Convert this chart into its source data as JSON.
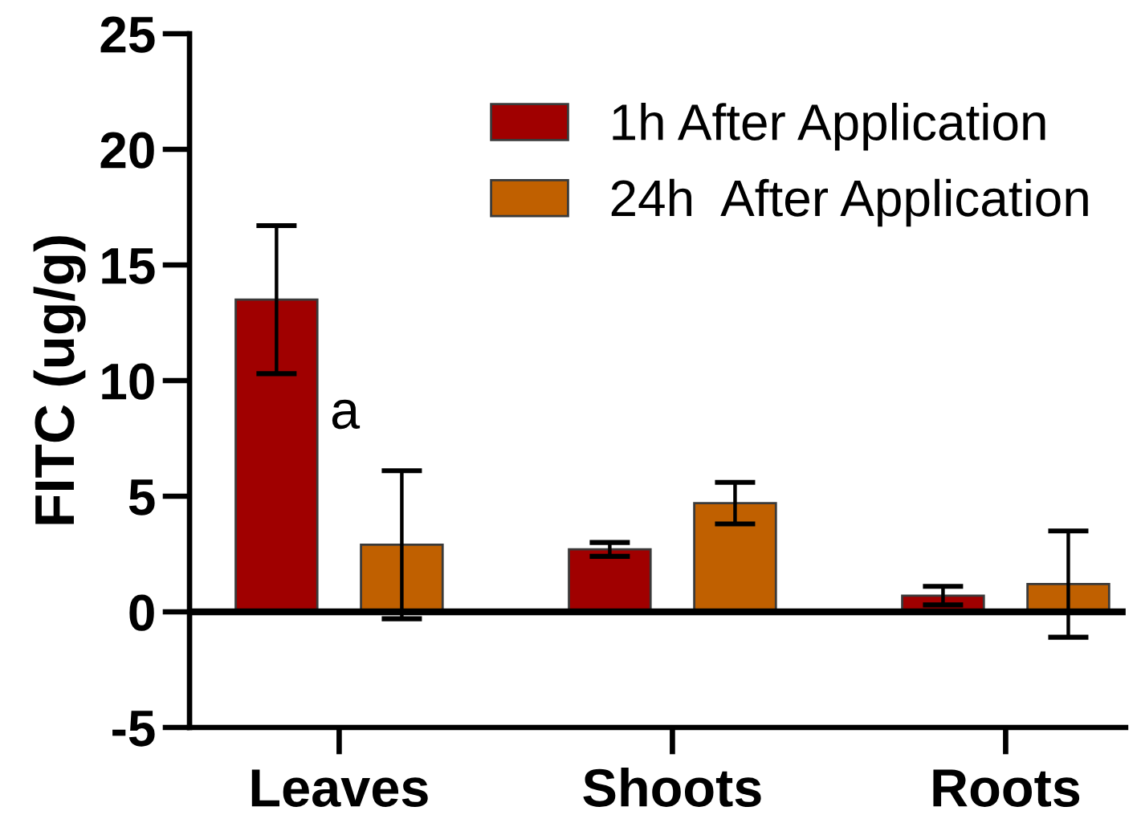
{
  "chart_data": {
    "type": "bar",
    "ylabel": "FITC (ug/g)",
    "categories": [
      "Leaves",
      "Shoots",
      "Roots"
    ],
    "series": [
      {
        "name": "1h After Application",
        "color": "#a00000",
        "values": [
          13.5,
          2.7,
          0.7
        ],
        "errors": [
          3.2,
          0.3,
          0.4
        ]
      },
      {
        "name": "24h  After Application",
        "color": "#c06000",
        "values": [
          2.9,
          4.7,
          1.2
        ],
        "errors": [
          3.2,
          0.9,
          2.3
        ]
      }
    ],
    "ylim": [
      -5,
      25
    ],
    "yticks": [
      -5,
      0,
      5,
      10,
      15,
      20,
      25
    ],
    "legend": "top right",
    "ref_lines": [
      {
        "axis": "y",
        "value": 0,
        "color": "#000000"
      }
    ],
    "annotations": [
      "a"
    ]
  }
}
